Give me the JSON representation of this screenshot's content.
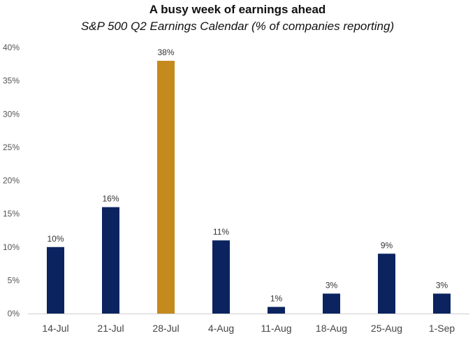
{
  "chart_data": {
    "type": "bar",
    "title": "A busy week of earnings ahead",
    "subtitle": "S&P 500 Q2 Earnings Calendar (% of companies reporting)",
    "categories": [
      "14-Jul",
      "21-Jul",
      "28-Jul",
      "4-Aug",
      "11-Aug",
      "18-Aug",
      "25-Aug",
      "1-Sep"
    ],
    "values": [
      10,
      16,
      38,
      11,
      1,
      3,
      9,
      3
    ],
    "data_labels": [
      "10%",
      "16%",
      "38%",
      "11%",
      "1%",
      "3%",
      "9%",
      "3%"
    ],
    "highlight_category": "28-Jul",
    "ylim": [
      0,
      40
    ],
    "yticks": [
      0,
      5,
      10,
      15,
      20,
      25,
      30,
      35,
      40
    ],
    "ytick_labels": [
      "0%",
      "5%",
      "10%",
      "15%",
      "20%",
      "25%",
      "30%",
      "35%",
      "40%"
    ],
    "grid": false,
    "colors": {
      "bar": "#0b2460",
      "highlight": "#c48a1e",
      "axis": "#d0d0d0"
    }
  }
}
